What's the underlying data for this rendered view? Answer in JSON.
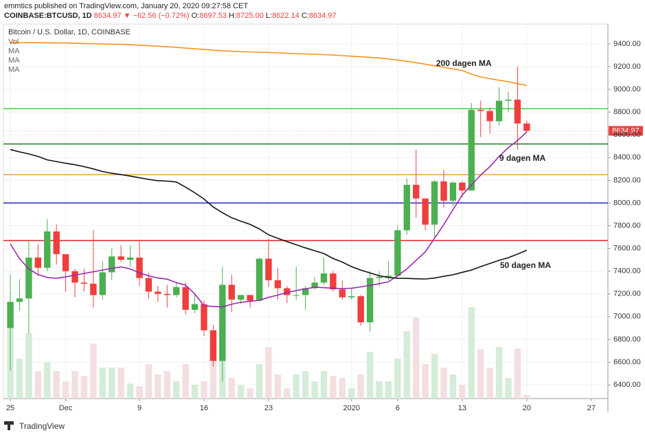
{
  "header": {
    "publisher": "emmtics published on TradingView.com, January 20, 2020 09:27:58 CET",
    "symbol": "COINBASE:BTCUSD, 1D",
    "price": "8634.97",
    "arrow": "▼",
    "change": "−62.56 (−0.72%)",
    "ohlc": [
      {
        "label": "O:",
        "value": "8697.53"
      },
      {
        "label": "H:",
        "value": "8725.00"
      },
      {
        "label": "L:",
        "value": "8622.14"
      },
      {
        "label": "C:",
        "value": "8634.97"
      }
    ]
  },
  "footer": {
    "brand": "TradingView"
  },
  "chart_data": {
    "type": "candlestick",
    "title": "Bitcoin / U.S. Dollar, 1D, COINBASE",
    "legend": [
      "Vol",
      "MA",
      "MA",
      "MA"
    ],
    "x": [
      0,
      1,
      2,
      3,
      4,
      5,
      6,
      7,
      8,
      9,
      10,
      11,
      12,
      13,
      14,
      15,
      16,
      17,
      18,
      19,
      20,
      21,
      22,
      23,
      24,
      25,
      26,
      27,
      28,
      29,
      30,
      31,
      32,
      33,
      34,
      35,
      36,
      37,
      38,
      39,
      40,
      41,
      42,
      43,
      44,
      45,
      46,
      47,
      48,
      49,
      50,
      51,
      52,
      53,
      54,
      55,
      56
    ],
    "open": [
      6900,
      7130,
      7160,
      7520,
      7430,
      7750,
      7550,
      7400,
      7300,
      7290,
      7190,
      7390,
      7530,
      7500,
      7520,
      7340,
      7220,
      7200,
      7190,
      7260,
      7060,
      7110,
      6880,
      6610,
      7280,
      7150,
      7190,
      7140,
      7510,
      7320,
      7250,
      7190,
      7190,
      7250,
      7300,
      7380,
      7240,
      7170,
      7180,
      6950,
      7340,
      7350,
      7360,
      7760,
      8160,
      8040,
      7810,
      8190,
      8020,
      8180,
      8110,
      8820,
      8810,
      8720,
      8900,
      8910,
      8700
    ],
    "high": [
      7370,
      7330,
      7670,
      7640,
      7860,
      7810,
      7550,
      7420,
      7420,
      7760,
      7490,
      7600,
      7630,
      7630,
      7670,
      7390,
      7270,
      7280,
      7300,
      7300,
      7200,
      7140,
      6930,
      7440,
      7370,
      7190,
      7190,
      7520,
      7690,
      7430,
      7270,
      7440,
      7270,
      7350,
      7520,
      7400,
      7320,
      7250,
      7190,
      7400,
      7400,
      7490,
      7800,
      8220,
      8470,
      8040,
      8200,
      8290,
      8190,
      8190,
      8880,
      8900,
      8840,
      9020,
      8980,
      9200,
      8725.0
    ],
    "low": [
      6525,
      7050,
      6850,
      7360,
      7400,
      7460,
      7220,
      7170,
      7220,
      7080,
      7150,
      7320,
      7480,
      7440,
      7270,
      7160,
      7130,
      7080,
      7170,
      7020,
      7030,
      6830,
      6560,
      6430,
      7040,
      7110,
      7080,
      7130,
      7260,
      7150,
      7120,
      7150,
      7060,
      7240,
      7280,
      7220,
      7150,
      7150,
      6920,
      6870,
      7270,
      7320,
      7350,
      7720,
      7870,
      7760,
      7700,
      7960,
      7970,
      8050,
      8110,
      8580,
      8610,
      8680,
      8800,
      8470,
      8622.14
    ],
    "close": [
      7130,
      7160,
      7520,
      7430,
      7750,
      7550,
      7400,
      7300,
      7290,
      7190,
      7390,
      7530,
      7500,
      7520,
      7340,
      7220,
      7200,
      7190,
      7260,
      7060,
      7110,
      6880,
      6610,
      7280,
      7150,
      7190,
      7140,
      7510,
      7320,
      7250,
      7190,
      7190,
      7250,
      7300,
      7380,
      7240,
      7170,
      7180,
      6950,
      7340,
      7350,
      7360,
      7760,
      8160,
      8040,
      7810,
      8190,
      8020,
      8180,
      8110,
      8820,
      8810,
      8720,
      8900,
      8910,
      8700,
      8634.97
    ],
    "volume": [
      105,
      58,
      95,
      40,
      53,
      40,
      25,
      40,
      33,
      80,
      45,
      45,
      45,
      22,
      18,
      50,
      35,
      40,
      25,
      50,
      20,
      25,
      65,
      80,
      30,
      20,
      15,
      50,
      75,
      35,
      15,
      35,
      40,
      25,
      40,
      33,
      30,
      15,
      35,
      68,
      25,
      25,
      58,
      98,
      118,
      50,
      65,
      45,
      35,
      20,
      133,
      72,
      45,
      75,
      30,
      73,
      5
    ],
    "up_color": "#4caf50",
    "down_color": "#ef3e3e",
    "vol_up_color": "#d4ecd8",
    "vol_down_color": "#f3dfe0",
    "ma": [
      {
        "label": "200 dagen MA",
        "color": "#f7931e",
        "values": [
          9412,
          9412,
          9411,
          9411,
          9410,
          9409,
          9408,
          9406,
          9404,
          9402,
          9400,
          9398,
          9396,
          9393,
          9389,
          9385,
          9380,
          9375,
          9370,
          9364,
          9358,
          9352,
          9346,
          9340,
          9335,
          9332,
          9330,
          9327,
          9324,
          9321,
          9318,
          9315,
          9312,
          9309,
          9306,
          9302,
          9297,
          9292,
          9287,
          9282,
          9276,
          9268,
          9258,
          9247,
          9235,
          9222,
          9208,
          9194,
          9180,
          9166,
          9134,
          9110,
          9095,
          9080,
          9068,
          9050,
          9035
        ]
      },
      {
        "label": "9 dagen MA",
        "color": "#9c27b0",
        "values": [
          7640,
          7510,
          7420,
          7370,
          7345,
          7338,
          7350,
          7365,
          7380,
          7395,
          7410,
          7425,
          7438,
          7420,
          7385,
          7360,
          7340,
          7330,
          7300,
          7277,
          7200,
          7096,
          7090,
          7085,
          7110,
          7126,
          7135,
          7144,
          7170,
          7190,
          7212,
          7229,
          7245,
          7259,
          7255,
          7250,
          7247,
          7250,
          7262,
          7275,
          7290,
          7307,
          7360,
          7420,
          7495,
          7570,
          7690,
          7810,
          7942,
          8070,
          8160,
          8245,
          8320,
          8410,
          8487,
          8550,
          8626
        ]
      },
      {
        "label": "50 dagen MA",
        "color": "#111111",
        "values": [
          8470,
          8450,
          8432,
          8410,
          8380,
          8365,
          8350,
          8337,
          8320,
          8300,
          8277,
          8262,
          8250,
          8237,
          8222,
          8208,
          8197,
          8193,
          8185,
          8140,
          8090,
          8035,
          7965,
          7915,
          7870,
          7840,
          7812,
          7772,
          7720,
          7690,
          7660,
          7633,
          7605,
          7580,
          7555,
          7512,
          7480,
          7440,
          7410,
          7385,
          7360,
          7345,
          7338,
          7337,
          7333,
          7331,
          7340,
          7355,
          7368,
          7390,
          7410,
          7440,
          7468,
          7495,
          7519,
          7550,
          7585
        ]
      }
    ],
    "levels": [
      {
        "value": 8830,
        "color": "#3fd13f"
      },
      {
        "value": 8520,
        "color": "#1b7a1b"
      },
      {
        "value": 8250,
        "color": "#f0a040"
      },
      {
        "value": 8000,
        "color": "#2222cc"
      },
      {
        "value": 7670,
        "color": "#e02020"
      }
    ],
    "last_price": {
      "value": 8634.97,
      "label": "8634.97",
      "color": "#ef3e3e"
    },
    "xlim": [
      -0.75,
      64.8
    ],
    "xticks": [
      {
        "value": 0,
        "label": "25"
      },
      {
        "value": 6,
        "label": "Dec"
      },
      {
        "value": 14,
        "label": "9"
      },
      {
        "value": 21,
        "label": "16"
      },
      {
        "value": 28,
        "label": "23"
      },
      {
        "value": 37,
        "label": "2020"
      },
      {
        "value": 42,
        "label": "6"
      },
      {
        "value": 49,
        "label": "13"
      },
      {
        "value": 56,
        "label": "20"
      },
      {
        "value": 63,
        "label": "27"
      }
    ],
    "ylim": [
      6279,
      9575
    ],
    "yticks": [
      {
        "value": 6400,
        "label": "6400.00"
      },
      {
        "value": 6600,
        "label": "6600.00"
      },
      {
        "value": 6800,
        "label": "6800.00"
      },
      {
        "value": 7000,
        "label": "7000.00"
      },
      {
        "value": 7200,
        "label": "7200.00"
      },
      {
        "value": 7400,
        "label": "7400.00"
      },
      {
        "value": 7600,
        "label": "7600.00"
      },
      {
        "value": 7800,
        "label": "7800.00"
      },
      {
        "value": 8000,
        "label": "8000.00"
      },
      {
        "value": 8200,
        "label": "8200.00"
      },
      {
        "value": 8400,
        "label": "8400.00"
      },
      {
        "value": 8600,
        "label": "8600.00"
      },
      {
        "value": 8800,
        "label": "8800.00"
      },
      {
        "value": 9000,
        "label": "9000.00"
      },
      {
        "value": 9200,
        "label": "9200.00"
      },
      {
        "value": 9400,
        "label": "9400.00"
      }
    ],
    "grid": true
  }
}
